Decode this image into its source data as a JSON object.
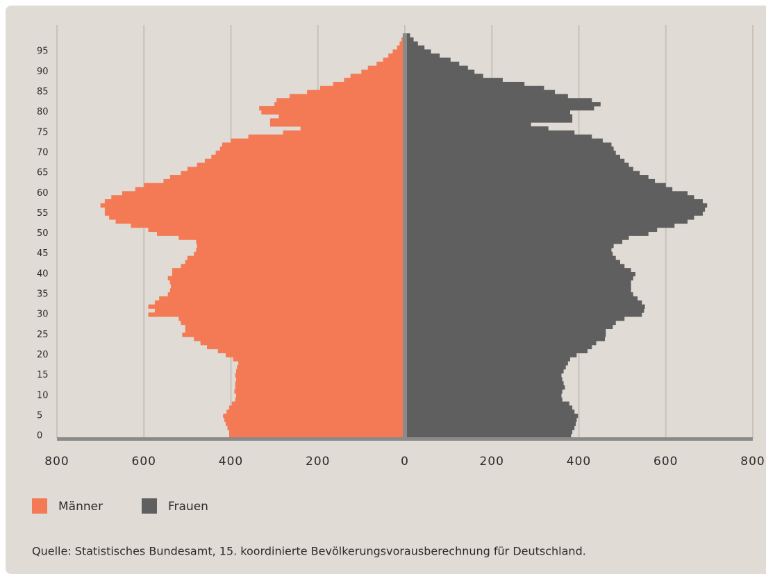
{
  "chart_data": {
    "type": "pyramid",
    "categories": [
      0,
      null,
      null,
      null,
      null,
      5,
      null,
      null,
      null,
      null,
      10,
      null,
      null,
      null,
      null,
      15,
      null,
      null,
      null,
      null,
      20,
      null,
      null,
      null,
      null,
      25,
      null,
      null,
      null,
      null,
      30,
      null,
      null,
      null,
      null,
      35,
      null,
      null,
      null,
      null,
      40,
      null,
      null,
      null,
      null,
      45,
      null,
      null,
      null,
      null,
      50,
      null,
      null,
      null,
      null,
      55,
      null,
      null,
      null,
      null,
      60,
      null,
      null,
      null,
      null,
      65,
      null,
      null,
      null,
      null,
      70,
      null,
      null,
      null,
      null,
      75,
      null,
      null,
      null,
      null,
      80,
      null,
      null,
      null,
      null,
      85,
      null,
      null,
      null,
      null,
      90,
      null,
      null,
      null,
      null,
      95,
      null,
      null,
      null,
      null
    ],
    "series": [
      {
        "name": "Männer",
        "color": "#f47a55",
        "side": "left",
        "values": [
          404,
          404,
          408,
          412,
          415,
          418,
          410,
          404,
          398,
          390,
          388,
          392,
          390,
          390,
          388,
          390,
          388,
          386,
          383,
          395,
          412,
          430,
          455,
          470,
          485,
          512,
          505,
          505,
          515,
          520,
          590,
          575,
          590,
          575,
          565,
          545,
          540,
          538,
          540,
          545,
          535,
          535,
          515,
          505,
          500,
          485,
          480,
          478,
          480,
          520,
          570,
          590,
          630,
          665,
          680,
          690,
          690,
          700,
          690,
          675,
          650,
          620,
          600,
          555,
          540,
          515,
          500,
          478,
          460,
          445,
          435,
          425,
          420,
          400,
          360,
          280,
          240,
          310,
          310,
          290,
          330,
          335,
          300,
          295,
          265,
          225,
          195,
          165,
          140,
          125,
          100,
          85,
          65,
          50,
          38,
          28,
          18,
          12,
          8,
          5
        ]
      },
      {
        "name": "Frauen",
        "color": "#5e5f5e",
        "side": "right",
        "values": [
          382,
          385,
          390,
          393,
          395,
          398,
          390,
          385,
          378,
          362,
          360,
          362,
          368,
          365,
          362,
          360,
          365,
          370,
          375,
          380,
          395,
          420,
          430,
          440,
          460,
          462,
          462,
          478,
          485,
          505,
          545,
          550,
          552,
          545,
          535,
          525,
          520,
          520,
          520,
          525,
          530,
          520,
          505,
          495,
          485,
          478,
          475,
          480,
          500,
          515,
          560,
          580,
          620,
          650,
          665,
          685,
          690,
          695,
          685,
          665,
          650,
          615,
          600,
          575,
          560,
          540,
          525,
          515,
          505,
          495,
          485,
          480,
          475,
          455,
          430,
          390,
          330,
          290,
          385,
          385,
          380,
          435,
          450,
          430,
          375,
          345,
          320,
          275,
          225,
          180,
          160,
          145,
          125,
          105,
          80,
          60,
          45,
          30,
          20,
          12
        ]
      }
    ],
    "xlim": [
      -800,
      800
    ],
    "xticks": [
      {
        "value": -800,
        "label": "800"
      },
      {
        "value": -600,
        "label": "600"
      },
      {
        "value": -400,
        "label": "400"
      },
      {
        "value": -200,
        "label": "200"
      },
      0,
      200,
      400,
      600,
      800
    ],
    "grid": true,
    "source": "Quelle: Statistisches Bundesamt, 15. koordinierte Bevölkerungsvorausberechnung für Deutschland."
  }
}
